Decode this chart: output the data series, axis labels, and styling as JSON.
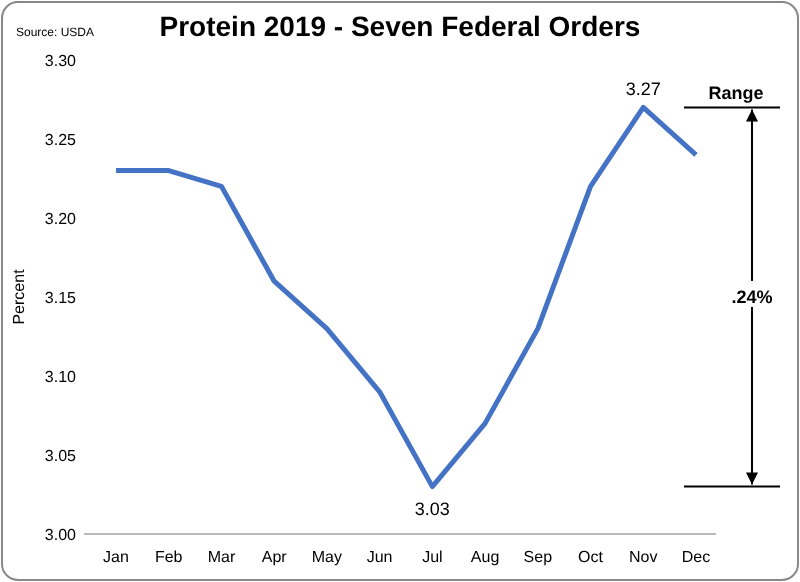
{
  "chart_data": {
    "type": "line",
    "title": "Protein 2019 - Seven Federal Orders",
    "ylabel": "Percent",
    "categories": [
      "Jan",
      "Feb",
      "Mar",
      "Apr",
      "May",
      "Jun",
      "Jul",
      "Aug",
      "Sep",
      "Oct",
      "Nov",
      "Dec"
    ],
    "series": [
      {
        "color": "#4472c4",
        "values": [
          3.23,
          3.23,
          3.22,
          3.16,
          3.13,
          3.09,
          3.03,
          3.07,
          3.13,
          3.22,
          3.27,
          3.24
        ],
        "value_labels": [
          null,
          null,
          null,
          null,
          null,
          null,
          "3.03",
          null,
          null,
          null,
          "3.27",
          null
        ]
      }
    ],
    "ylim": [
      3.0,
      3.3
    ],
    "yticks": [
      {
        "value": 3.0,
        "label": "3.00"
      },
      {
        "value": 3.05,
        "label": "3.05"
      },
      {
        "value": 3.1,
        "label": "3.10"
      },
      {
        "value": 3.15,
        "label": "3.15"
      },
      {
        "value": 3.2,
        "label": "3.20"
      },
      {
        "value": 3.25,
        "label": "3.25"
      },
      {
        "value": 3.3,
        "label": "3.30"
      }
    ],
    "grid": false,
    "marker": "none",
    "line_style": "solid",
    "annotations": [
      "Source: USDA",
      "Range",
      ".24%"
    ]
  }
}
